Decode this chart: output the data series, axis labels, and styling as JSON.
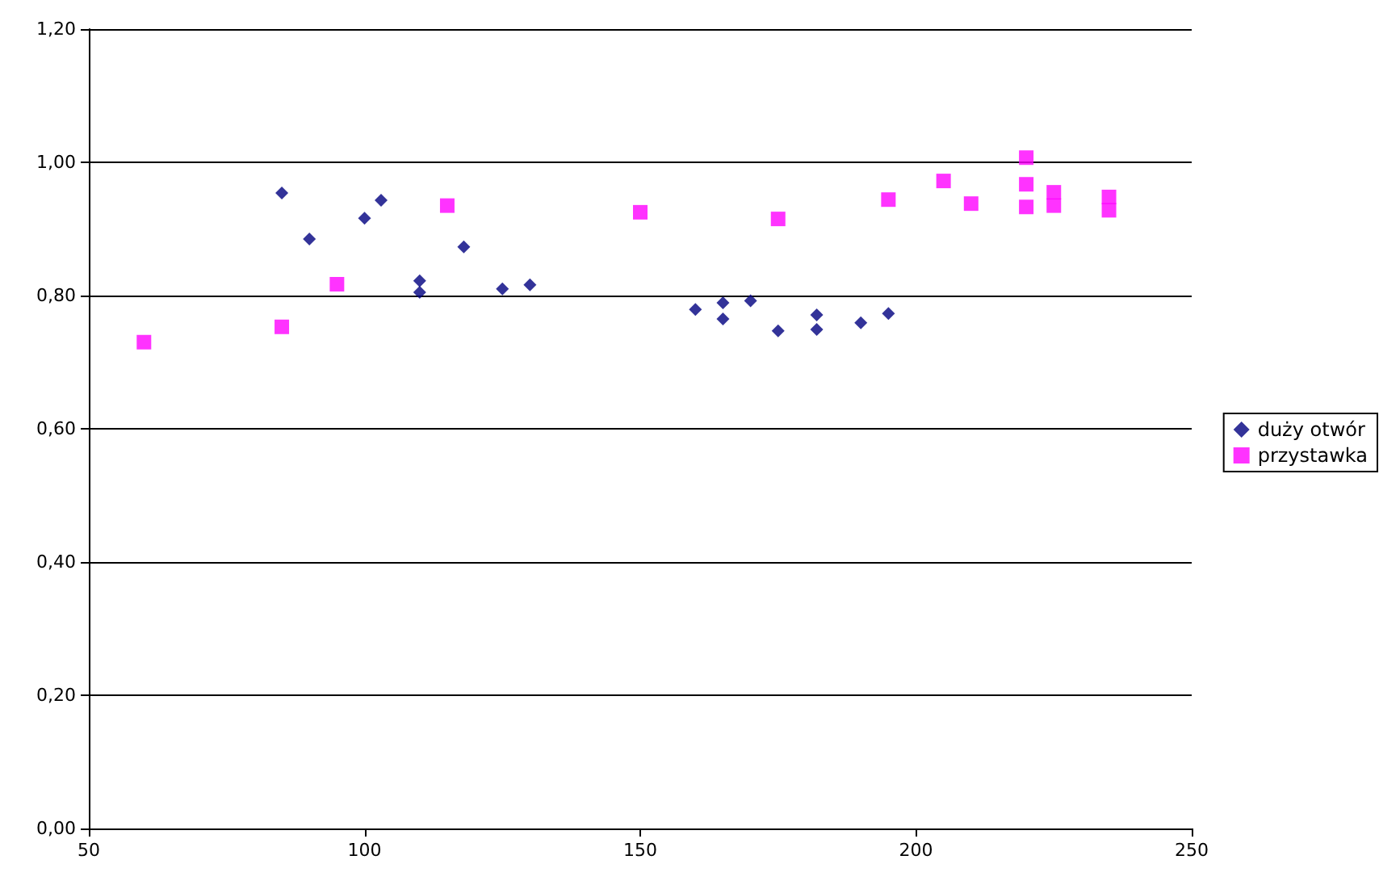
{
  "chart_data": {
    "type": "scatter",
    "xlim": [
      50,
      250
    ],
    "ylim": [
      0,
      1.2
    ],
    "xticks": [
      50,
      100,
      150,
      200,
      250
    ],
    "yticks": [
      {
        "value": 0,
        "label": "0,00"
      },
      {
        "value": 0.2,
        "label": "0,20"
      },
      {
        "value": 0.4,
        "label": "0,40"
      },
      {
        "value": 0.6,
        "label": "0,60"
      },
      {
        "value": 0.8,
        "label": "0,80"
      },
      {
        "value": 1.0,
        "label": "1,00"
      },
      {
        "value": 1.2,
        "label": "1,20"
      }
    ],
    "grid": "y",
    "legend": "right",
    "series": [
      {
        "name": "duży otwór",
        "color": "#000080",
        "marker": "diamond",
        "x": [
          85,
          90,
          100,
          103,
          110,
          110,
          118,
          125,
          130,
          160,
          165,
          165,
          170,
          175,
          182,
          182,
          190,
          195
        ],
        "values": [
          0.954,
          0.885,
          0.916,
          0.943,
          0.822,
          0.805,
          0.873,
          0.81,
          0.816,
          0.779,
          0.789,
          0.765,
          0.792,
          0.747,
          0.771,
          0.749,
          0.759,
          0.773
        ]
      },
      {
        "name": "przystawka",
        "color": "#ff00ff",
        "marker": "square",
        "x": [
          60,
          85,
          95,
          115,
          150,
          175,
          195,
          205,
          210,
          220,
          220,
          220,
          225,
          225,
          235,
          235
        ],
        "values": [
          0.73,
          0.753,
          0.817,
          0.935,
          0.925,
          0.915,
          0.944,
          0.972,
          0.938,
          1.007,
          0.967,
          0.933,
          0.955,
          0.935,
          0.948,
          0.928
        ]
      }
    ]
  }
}
